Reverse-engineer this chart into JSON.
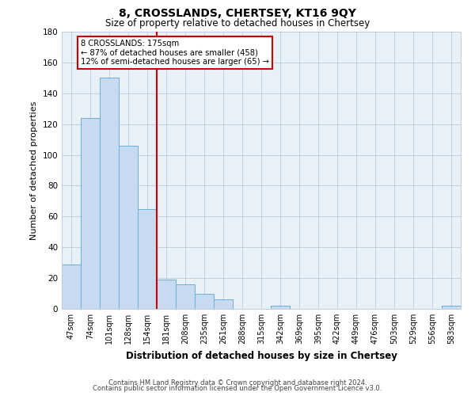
{
  "title": "8, CROSSLANDS, CHERTSEY, KT16 9QY",
  "subtitle": "Size of property relative to detached houses in Chertsey",
  "xlabel": "Distribution of detached houses by size in Chertsey",
  "ylabel": "Number of detached properties",
  "bar_labels": [
    "47sqm",
    "74sqm",
    "101sqm",
    "128sqm",
    "154sqm",
    "181sqm",
    "208sqm",
    "235sqm",
    "261sqm",
    "288sqm",
    "315sqm",
    "342sqm",
    "369sqm",
    "395sqm",
    "422sqm",
    "449sqm",
    "476sqm",
    "503sqm",
    "529sqm",
    "556sqm",
    "583sqm"
  ],
  "bar_values": [
    29,
    124,
    150,
    106,
    65,
    19,
    16,
    10,
    6,
    0,
    0,
    2,
    0,
    0,
    0,
    0,
    0,
    0,
    0,
    0,
    2
  ],
  "bar_color": "#c8daf0",
  "bar_edge_color": "#6baed6",
  "ylim": [
    0,
    180
  ],
  "yticks": [
    0,
    20,
    40,
    60,
    80,
    100,
    120,
    140,
    160,
    180
  ],
  "property_line_index": 4.5,
  "property_line_color": "#cc0000",
  "annotation_title": "8 CROSSLANDS: 175sqm",
  "annotation_line1": "← 87% of detached houses are smaller (458)",
  "annotation_line2": "12% of semi-detached houses are larger (65) →",
  "footer1": "Contains HM Land Registry data © Crown copyright and database right 2024.",
  "footer2": "Contains public sector information licensed under the Open Government Licence v3.0.",
  "background_color": "#ffffff",
  "grid_color": "#c0cfe0",
  "annotation_box_edge_color": "#cc0000"
}
